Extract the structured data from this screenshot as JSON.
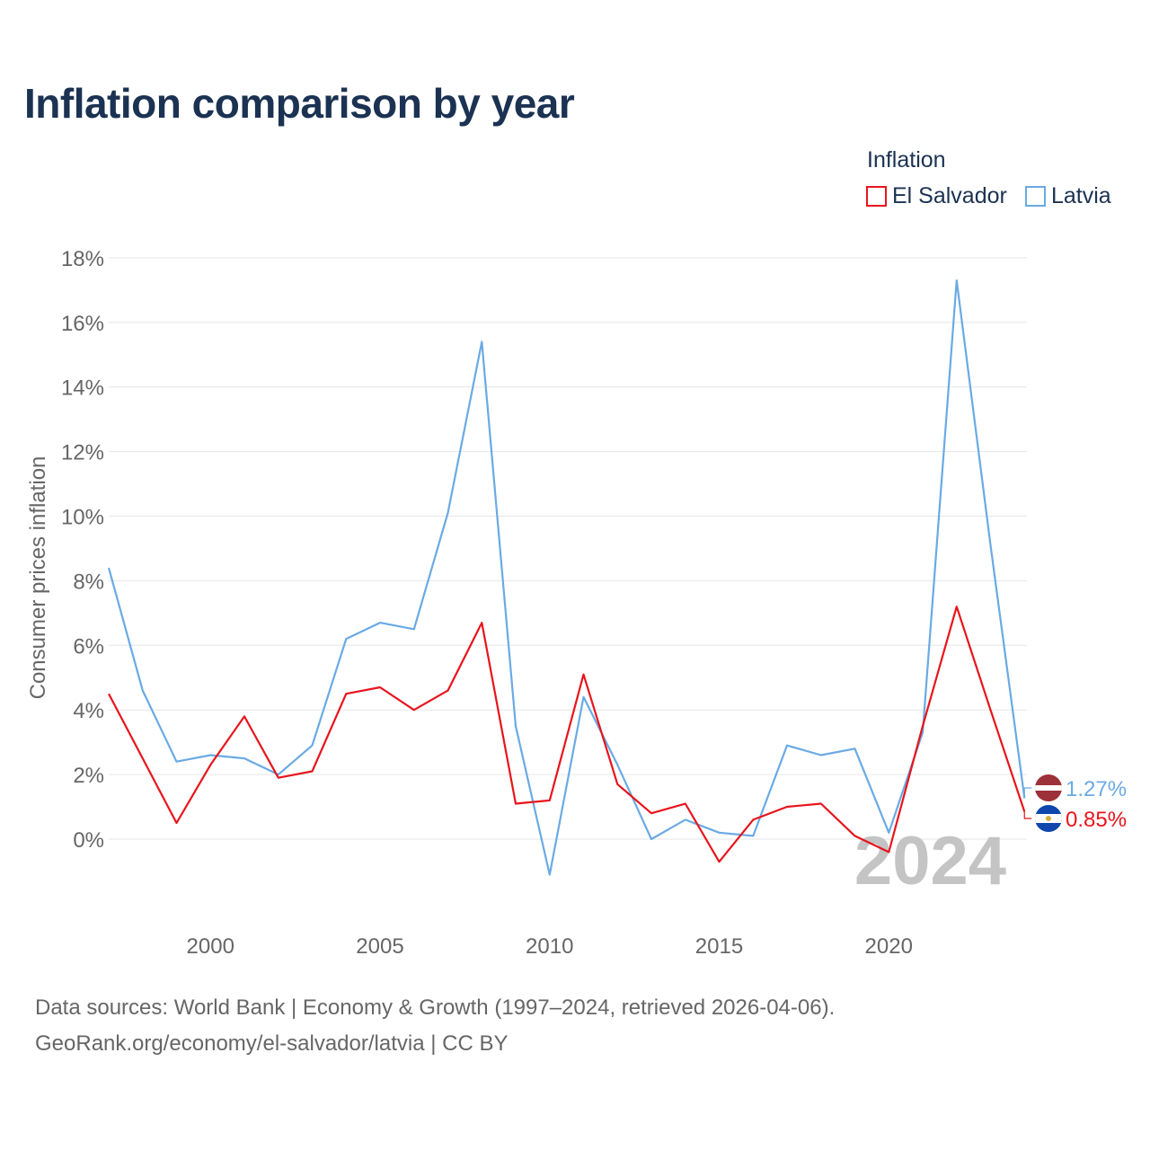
{
  "title": "Inflation comparison by year",
  "legend": {
    "title": "Inflation",
    "items": [
      {
        "name": "El Salvador",
        "color": "#e8141c"
      },
      {
        "name": "Latvia",
        "color": "#6aaae4"
      }
    ]
  },
  "chart_data": {
    "type": "line",
    "title": "Inflation comparison by year",
    "xlabel": "",
    "ylabel": "Consumer prices inflation",
    "xlim": [
      1997,
      2024
    ],
    "ylim": [
      -4.5,
      18
    ],
    "yticks": [
      0,
      2,
      4,
      6,
      8,
      10,
      12,
      14,
      16,
      18
    ],
    "ytick_labels": [
      "0%",
      "2%",
      "4%",
      "6%",
      "8%",
      "10%",
      "12%",
      "14%",
      "16%",
      "18%"
    ],
    "xticks": [
      2000,
      2005,
      2010,
      2015,
      2020
    ],
    "xtick_labels": [
      "2000",
      "2005",
      "2010",
      "2015",
      "2020"
    ],
    "grid": true,
    "legend_position": "top-right",
    "year_watermark": "2024",
    "x": [
      1997,
      1998,
      1999,
      2000,
      2001,
      2002,
      2003,
      2004,
      2005,
      2006,
      2007,
      2008,
      2009,
      2010,
      2011,
      2012,
      2013,
      2014,
      2015,
      2016,
      2017,
      2018,
      2019,
      2020,
      2021,
      2022,
      2023,
      2024
    ],
    "series": [
      {
        "name": "El Salvador",
        "color": "#e8141c",
        "values": [
          4.5,
          2.5,
          0.5,
          2.3,
          3.8,
          1.9,
          2.1,
          4.5,
          4.7,
          4.0,
          4.6,
          6.7,
          1.1,
          1.2,
          5.1,
          1.7,
          0.8,
          1.1,
          -0.7,
          0.6,
          1.0,
          1.1,
          0.1,
          -0.4,
          3.5,
          7.2,
          4.0,
          0.85
        ],
        "end_label": "0.85%",
        "flag": "el-salvador-flag-icon"
      },
      {
        "name": "Latvia",
        "color": "#6aaae4",
        "values": [
          8.4,
          4.6,
          2.4,
          2.6,
          2.5,
          2.0,
          2.9,
          6.2,
          6.7,
          6.5,
          10.1,
          15.4,
          3.5,
          -1.1,
          4.4,
          2.3,
          0.0,
          0.6,
          0.2,
          0.1,
          2.9,
          2.6,
          2.8,
          0.2,
          3.3,
          17.3,
          9.1,
          1.27
        ],
        "end_label": "1.27%",
        "flag": "latvia-flag-icon"
      }
    ]
  },
  "footer": {
    "line1": "Data sources: World Bank | Economy & Growth (1997–2024, retrieved 2026-04-06).",
    "line2": "GeoRank.org/economy/el-salvador/latvia | CC BY"
  }
}
